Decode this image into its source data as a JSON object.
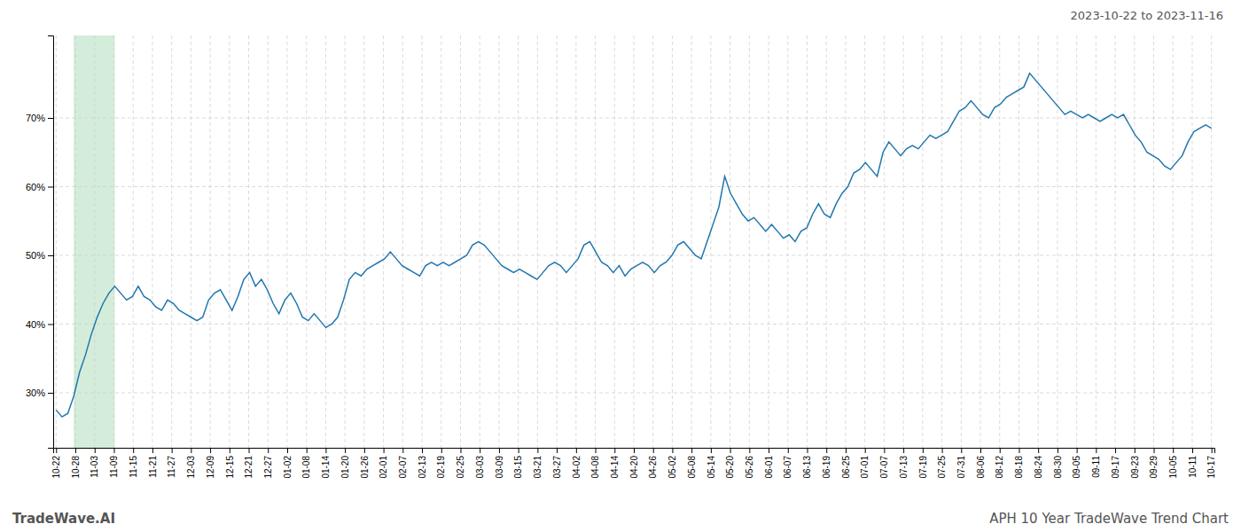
{
  "chart_data": {
    "type": "line",
    "title": "APH 10 Year TradeWave Trend Chart",
    "subtitle": "2023-10-22 to 2023-11-16",
    "annotations": [
      "TradeWave.AI"
    ],
    "color": "#2176ae",
    "grid": true,
    "highlight": {
      "start": 3,
      "end": 10,
      "color": "#d4edda"
    },
    "xlim": [
      -0.5,
      197.5
    ],
    "xticks": [
      {
        "value": 0,
        "label": "10-22"
      },
      {
        "value": 3.283333,
        "label": "10-28"
      },
      {
        "value": 6.566667,
        "label": "11-03"
      },
      {
        "value": 9.85,
        "label": "11-09"
      },
      {
        "value": 13.133333,
        "label": "11-15"
      },
      {
        "value": 16.416667,
        "label": "11-21"
      },
      {
        "value": 19.7,
        "label": "11-27"
      },
      {
        "value": 22.983333,
        "label": "12-03"
      },
      {
        "value": 26.266667,
        "label": "12-09"
      },
      {
        "value": 29.55,
        "label": "12-15"
      },
      {
        "value": 32.833333,
        "label": "12-21"
      },
      {
        "value": 36.116667,
        "label": "12-27"
      },
      {
        "value": 39.4,
        "label": "01-02"
      },
      {
        "value": 42.683333,
        "label": "01-08"
      },
      {
        "value": 45.966667,
        "label": "01-14"
      },
      {
        "value": 49.25,
        "label": "01-20"
      },
      {
        "value": 52.533333,
        "label": "01-26"
      },
      {
        "value": 55.816667,
        "label": "02-01"
      },
      {
        "value": 59.1,
        "label": "02-07"
      },
      {
        "value": 62.383333,
        "label": "02-13"
      },
      {
        "value": 65.666667,
        "label": "02-19"
      },
      {
        "value": 68.95,
        "label": "02-25"
      },
      {
        "value": 72.233333,
        "label": "03-03"
      },
      {
        "value": 75.516667,
        "label": "03-09"
      },
      {
        "value": 78.8,
        "label": "03-15"
      },
      {
        "value": 82.083333,
        "label": "03-21"
      },
      {
        "value": 85.366667,
        "label": "03-27"
      },
      {
        "value": 88.65,
        "label": "04-02"
      },
      {
        "value": 91.933333,
        "label": "04-08"
      },
      {
        "value": 95.216667,
        "label": "04-14"
      },
      {
        "value": 98.5,
        "label": "04-20"
      },
      {
        "value": 101.783333,
        "label": "04-26"
      },
      {
        "value": 105.066667,
        "label": "05-02"
      },
      {
        "value": 108.35,
        "label": "05-08"
      },
      {
        "value": 111.633333,
        "label": "05-14"
      },
      {
        "value": 114.916667,
        "label": "05-20"
      },
      {
        "value": 118.2,
        "label": "05-26"
      },
      {
        "value": 121.483333,
        "label": "06-01"
      },
      {
        "value": 124.766667,
        "label": "06-07"
      },
      {
        "value": 128.05,
        "label": "06-13"
      },
      {
        "value": 131.333333,
        "label": "06-19"
      },
      {
        "value": 134.616667,
        "label": "06-25"
      },
      {
        "value": 137.9,
        "label": "07-01"
      },
      {
        "value": 141.183333,
        "label": "07-07"
      },
      {
        "value": 144.466667,
        "label": "07-13"
      },
      {
        "value": 147.75,
        "label": "07-19"
      },
      {
        "value": 151.033333,
        "label": "07-25"
      },
      {
        "value": 154.316667,
        "label": "07-31"
      },
      {
        "value": 157.6,
        "label": "08-06"
      },
      {
        "value": 160.883333,
        "label": "08-12"
      },
      {
        "value": 164.166667,
        "label": "08-18"
      },
      {
        "value": 167.45,
        "label": "08-24"
      },
      {
        "value": 170.733333,
        "label": "08-30"
      },
      {
        "value": 174.016667,
        "label": "09-05"
      },
      {
        "value": 177.3,
        "label": "09-11"
      },
      {
        "value": 180.583333,
        "label": "09-17"
      },
      {
        "value": 183.866667,
        "label": "09-23"
      },
      {
        "value": 187.15,
        "label": "09-29"
      },
      {
        "value": 190.433333,
        "label": "10-05"
      },
      {
        "value": 193.716667,
        "label": "10-11"
      },
      {
        "value": 197,
        "label": "10-17"
      }
    ],
    "ylim": [
      22,
      82
    ],
    "yticks": [
      {
        "value": 30,
        "label": "30%"
      },
      {
        "value": 40,
        "label": "40%"
      },
      {
        "value": 50,
        "label": "50%"
      },
      {
        "value": 60,
        "label": "60%"
      },
      {
        "value": 70,
        "label": "70%"
      }
    ],
    "x": [
      0,
      1,
      2,
      3,
      4,
      5,
      6,
      7,
      8,
      9,
      10,
      11,
      12,
      13,
      14,
      15,
      16,
      17,
      18,
      19,
      20,
      21,
      22,
      23,
      24,
      25,
      26,
      27,
      28,
      29,
      30,
      31,
      32,
      33,
      34,
      35,
      36,
      37,
      38,
      39,
      40,
      41,
      42,
      43,
      44,
      45,
      46,
      47,
      48,
      49,
      50,
      51,
      52,
      53,
      54,
      55,
      56,
      57,
      58,
      59,
      60,
      61,
      62,
      63,
      64,
      65,
      66,
      67,
      68,
      69,
      70,
      71,
      72,
      73,
      74,
      75,
      76,
      77,
      78,
      79,
      80,
      81,
      82,
      83,
      84,
      85,
      86,
      87,
      88,
      89,
      90,
      91,
      92,
      93,
      94,
      95,
      96,
      97,
      98,
      99,
      100,
      101,
      102,
      103,
      104,
      105,
      106,
      107,
      108,
      109,
      110,
      111,
      112,
      113,
      114,
      115,
      116,
      117,
      118,
      119,
      120,
      121,
      122,
      123,
      124,
      125,
      126,
      127,
      128,
      129,
      130,
      131,
      132,
      133,
      134,
      135,
      136,
      137,
      138,
      139,
      140,
      141,
      142,
      143,
      144,
      145,
      146,
      147,
      148,
      149,
      150,
      151,
      152,
      153,
      154,
      155,
      156,
      157,
      158,
      159,
      160,
      161,
      162,
      163,
      164,
      165,
      166,
      167,
      168,
      169,
      170,
      171,
      172,
      173,
      174,
      175,
      176,
      177,
      178,
      179,
      180,
      181,
      182,
      183,
      184,
      185,
      186,
      187,
      188,
      189,
      190,
      191,
      192,
      193,
      194,
      195,
      196,
      197
    ],
    "values": [
      27.5,
      26.5,
      27.0,
      29.5,
      33.0,
      35.5,
      38.5,
      41.0,
      43.0,
      44.5,
      45.5,
      44.5,
      43.5,
      44.0,
      45.5,
      44.0,
      43.5,
      42.5,
      42.0,
      43.5,
      43.0,
      42.0,
      41.5,
      41.0,
      40.5,
      41.0,
      43.5,
      44.5,
      45.0,
      43.5,
      42.0,
      44.0,
      46.5,
      47.5,
      45.5,
      46.5,
      45.0,
      43.0,
      41.5,
      43.5,
      44.5,
      43.0,
      41.0,
      40.5,
      41.5,
      40.5,
      39.5,
      40.0,
      41.0,
      43.5,
      46.5,
      47.5,
      47.0,
      48.0,
      48.5,
      49.0,
      49.5,
      50.5,
      49.5,
      48.5,
      48.0,
      47.5,
      47.0,
      48.5,
      49.0,
      48.5,
      49.0,
      48.5,
      49.0,
      49.5,
      50.0,
      51.5,
      52.0,
      51.5,
      50.5,
      49.5,
      48.5,
      48.0,
      47.5,
      48.0,
      47.5,
      47.0,
      46.5,
      47.5,
      48.5,
      49.0,
      48.5,
      47.5,
      48.5,
      49.5,
      51.5,
      52.0,
      50.5,
      49.0,
      48.5,
      47.5,
      48.5,
      47.0,
      48.0,
      48.5,
      49.0,
      48.5,
      47.5,
      48.5,
      49.0,
      50.0,
      51.5,
      52.0,
      51.0,
      50.0,
      49.5,
      52.0,
      54.5,
      57.0,
      61.5,
      59.0,
      57.5,
      56.0,
      55.0,
      55.5,
      54.5,
      53.5,
      54.5,
      53.5,
      52.5,
      53.0,
      52.0,
      53.5,
      54.0,
      56.0,
      57.5,
      56.0,
      55.5,
      57.5,
      59.0,
      60.0,
      62.0,
      62.5,
      63.5,
      62.5,
      61.5,
      65.0,
      66.5,
      65.5,
      64.5,
      65.5,
      66.0,
      65.5,
      66.5,
      67.5,
      67.0,
      67.5,
      68.0,
      69.5,
      71.0,
      71.5,
      72.5,
      71.5,
      70.5,
      70.0,
      71.5,
      72.0,
      73.0,
      73.5,
      74.0,
      74.5,
      76.5,
      75.5,
      74.5,
      73.5,
      72.5,
      71.5,
      70.5,
      71.0,
      70.5,
      70.0,
      70.5,
      70.0,
      69.5,
      70.0,
      70.5,
      70.0,
      70.5,
      69.0,
      67.5,
      66.5,
      65.0,
      64.5,
      64.0,
      63.0,
      62.5,
      63.5,
      64.5,
      66.5,
      68.0,
      68.5,
      69.0,
      68.5
    ]
  }
}
